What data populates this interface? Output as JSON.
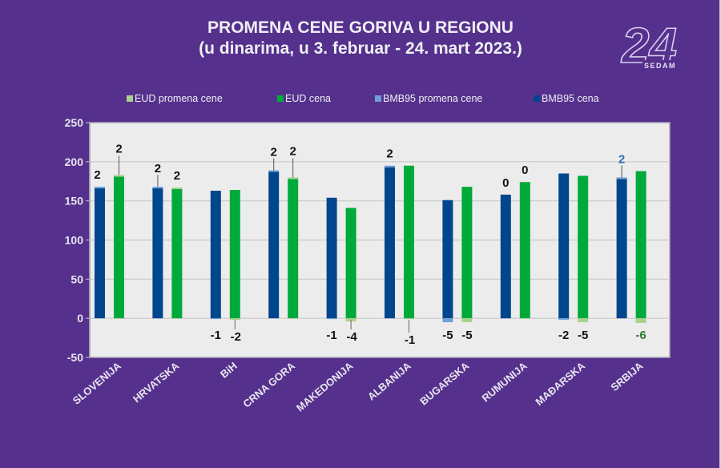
{
  "header": {
    "title_line1": "PROMENA CENE GORIVA U REGIONU",
    "title_line2": "(u dinarima, u 3. februar - 24. mart 2023.)"
  },
  "logo": {
    "number": "24",
    "word": "SEDAM"
  },
  "colors": {
    "background": "#55308c",
    "plot_bg": "#ececec",
    "eud_change": "#a9d18e",
    "eud_price": "#00aa3a",
    "bmb_change": "#6f9fd8",
    "bmb_price": "#00468c",
    "grid": "#c8c8c8"
  },
  "chart_data": {
    "type": "bar",
    "title": "PROMENA CENE GORIVA U REGIONU (u dinarima, u 3. februar - 24. mart 2023.)",
    "xlabel": "",
    "ylabel": "",
    "ylim": [
      -50,
      250
    ],
    "yticks": [
      250,
      200,
      150,
      100,
      50,
      0,
      -50
    ],
    "grid": true,
    "legend_position": "top",
    "legend": [
      "EUD promena cene",
      "EUD cena",
      "BMB95 promena cene",
      "BMB95 cena"
    ],
    "categories": [
      "SLOVENIJA",
      "HRVATSKA",
      "BiH",
      "CRNA GORA",
      "MAKEDONIJA",
      "ALBANIJA",
      "BUGARSKA",
      "RUMUNIJA",
      "MAĐARSKA",
      "SRBIJA"
    ],
    "series": [
      {
        "name": "BMB95 cena",
        "values": [
          166,
          166,
          163,
          187,
          154,
          193,
          151,
          158,
          185,
          178
        ]
      },
      {
        "name": "BMB95 promena cene",
        "values": [
          2,
          2,
          -1,
          2,
          -1,
          2,
          -5,
          0,
          -2,
          2
        ]
      },
      {
        "name": "EUD cena",
        "values": [
          181,
          165,
          164,
          178,
          141,
          195,
          168,
          174,
          182,
          188
        ]
      },
      {
        "name": "EUD promena cene",
        "values": [
          2,
          2,
          -2,
          2,
          -4,
          -1,
          -5,
          0,
          -5,
          -6
        ]
      }
    ],
    "data_labels": {
      "bmb": [
        "2",
        "2",
        "-1",
        "2",
        "-1",
        "2",
        "-5",
        "0",
        "-2",
        "2"
      ],
      "eud": [
        "2",
        "2",
        "-2",
        "2",
        "-4",
        "-1",
        "-5",
        "0",
        "-5",
        "-6"
      ]
    }
  }
}
